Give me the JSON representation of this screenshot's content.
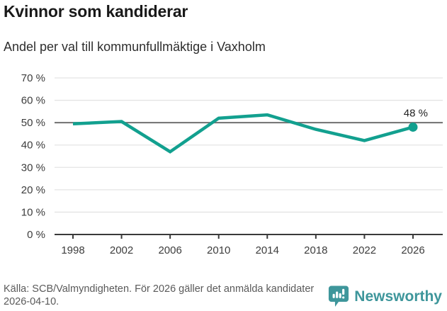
{
  "header": {
    "title": "Kvinnor som kandiderar",
    "subtitle": "Andel per val till kommunfullmäktige i Vaxholm"
  },
  "chart_data": {
    "type": "line",
    "title": "Kvinnor som kandiderar",
    "subtitle": "Andel per val till kommunfullmäktige i Vaxholm",
    "x": [
      1998,
      2002,
      2006,
      2010,
      2014,
      2018,
      2022,
      2026
    ],
    "xticks": [
      "1998",
      "2002",
      "2006",
      "2010",
      "2014",
      "2018",
      "2022",
      "2026"
    ],
    "series": [
      {
        "values": [
          49.5,
          50.5,
          37,
          52,
          53.5,
          47,
          42,
          48
        ]
      }
    ],
    "ylim": [
      0,
      70
    ],
    "ytick_step": 10,
    "yticks": [
      "0 %",
      "10 %",
      "20 %",
      "30 %",
      "40 %",
      "50 %",
      "60 %",
      "70 %"
    ],
    "reference_line": 50,
    "annotation": "48 %",
    "grid": true,
    "legend": false,
    "line_color": "#12a08f",
    "grid_color": "#e4e4e4",
    "reference_line_color": "#707070",
    "axis_color": "#3a3a3a",
    "tick_label_color": "#3d3d3d"
  },
  "footer": {
    "source": "Källa: SCB/Valmyndigheten. För 2026 gäller det anmälda kandidater 2026-04-10.",
    "brand": "Newsworthy",
    "brand_color": "#3e969b"
  }
}
